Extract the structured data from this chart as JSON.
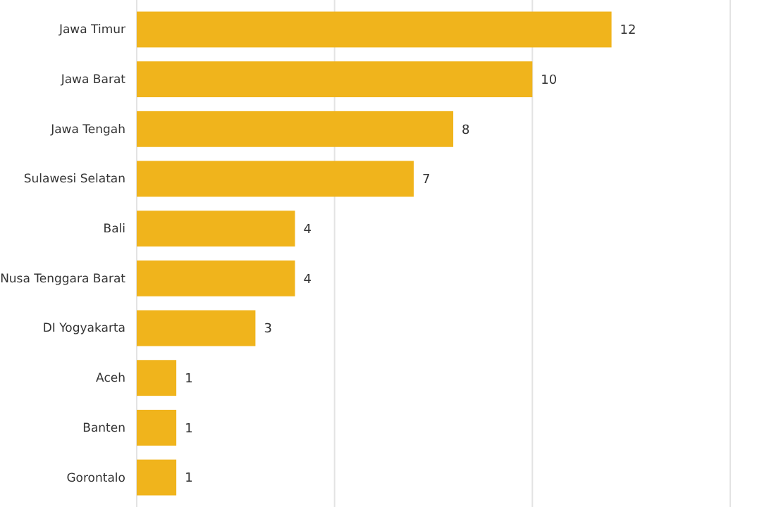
{
  "chart_data": {
    "type": "bar",
    "orientation": "horizontal",
    "categories": [
      "Jawa Timur",
      "Jawa Barat",
      "Jawa Tengah",
      "Sulawesi Selatan",
      "Bali",
      "Nusa Tenggara Barat",
      "DI Yogyakarta",
      "Aceh",
      "Banten",
      "Gorontalo"
    ],
    "values": [
      12,
      10,
      8,
      7,
      4,
      4,
      3,
      1,
      1,
      1
    ],
    "color": "#f0b41c",
    "xlim": [
      0,
      15
    ],
    "xticks": [
      {
        "value": 0,
        "label": null
      },
      {
        "value": 5,
        "label": null
      },
      {
        "value": 10,
        "label": null
      },
      {
        "value": 15,
        "label": null
      }
    ],
    "grid": "x",
    "tick_labels": "y",
    "data_labels": true
  }
}
